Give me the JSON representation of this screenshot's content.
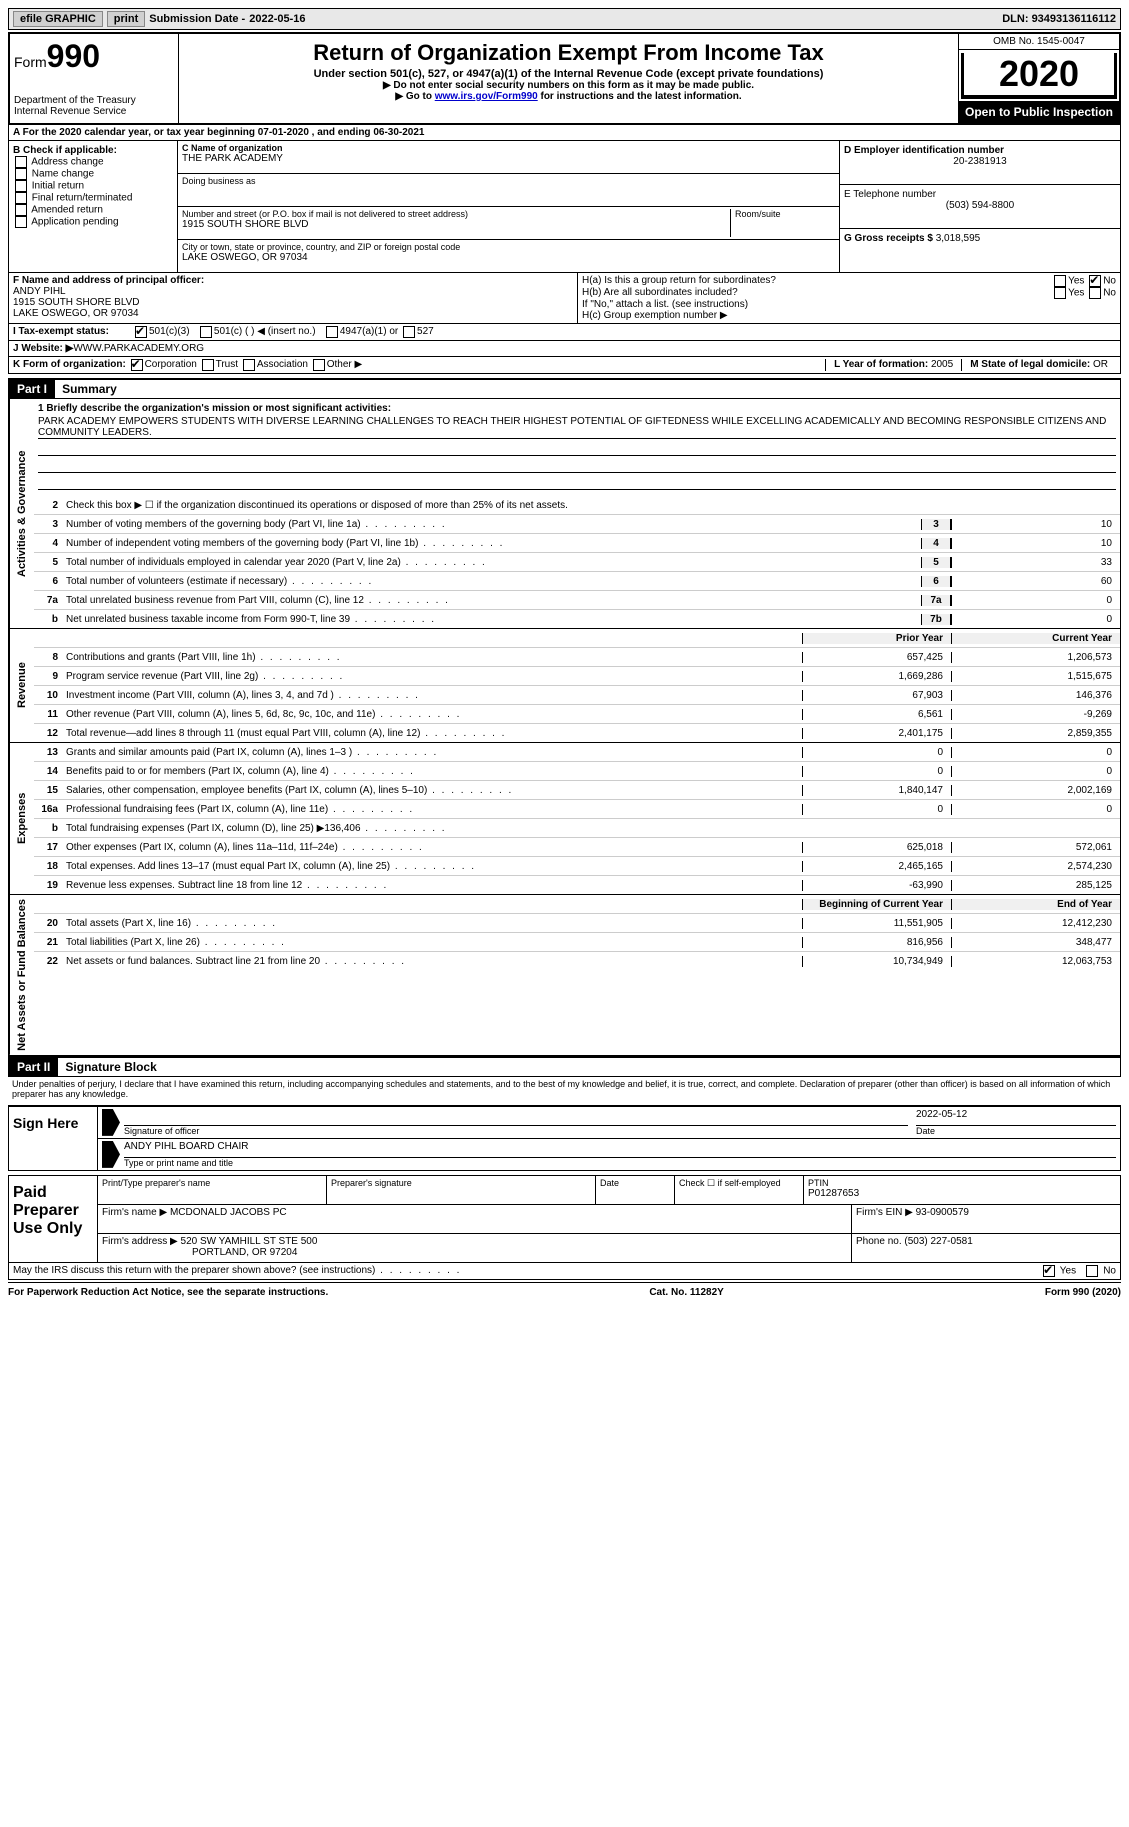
{
  "top": {
    "efile": "efile GRAPHIC",
    "print": "print",
    "sub_label": "Submission Date - ",
    "sub_date": "2022-05-16",
    "dln_label": "DLN: ",
    "dln": "93493136116112"
  },
  "header": {
    "form_word": "Form",
    "form_num": "990",
    "dept": "Department of the Treasury\nInternal Revenue Service",
    "title": "Return of Organization Exempt From Income Tax",
    "subtitle": "Under section 501(c), 527, or 4947(a)(1) of the Internal Revenue Code (except private foundations)",
    "note1": "▶ Do not enter social security numbers on this form as it may be made public.",
    "note2_pre": "▶ Go to ",
    "note2_link": "www.irs.gov/Form990",
    "note2_post": " for instructions and the latest information.",
    "omb": "OMB No. 1545-0047",
    "year": "2020",
    "open": "Open to Public Inspection"
  },
  "section_a": "A For the 2020 calendar year, or tax year beginning 07-01-2020   , and ending 06-30-2021",
  "b": {
    "label": "B Check if applicable:",
    "items": [
      "Address change",
      "Name change",
      "Initial return",
      "Final return/terminated",
      "Amended return",
      "Application pending"
    ],
    "checked": [
      false,
      false,
      false,
      false,
      false,
      false
    ]
  },
  "c": {
    "name_label": "C Name of organization",
    "name": "THE PARK ACADEMY",
    "dba_label": "Doing business as",
    "dba": "",
    "addr_label": "Number and street (or P.O. box if mail is not delivered to street address)",
    "room_label": "Room/suite",
    "addr": "1915 SOUTH SHORE BLVD",
    "city_label": "City or town, state or province, country, and ZIP or foreign postal code",
    "city": "LAKE OSWEGO, OR   97034"
  },
  "d": {
    "label": "D Employer identification number",
    "val": "20-2381913"
  },
  "e": {
    "label": "E Telephone number",
    "val": "(503) 594-8800"
  },
  "g": {
    "label": "G Gross receipts $ ",
    "val": "3,018,595"
  },
  "f": {
    "label": "F  Name and address of principal officer:",
    "name": "ANDY PIHL",
    "addr1": "1915 SOUTH SHORE BLVD",
    "addr2": "LAKE OSWEGO, OR   97034"
  },
  "h": {
    "a": "H(a)  Is this a group return for subordinates?",
    "b": "H(b)  Are all subordinates included?",
    "b_note": "If \"No,\" attach a list. (see instructions)",
    "c": "H(c)  Group exemption number ▶",
    "yes": "Yes",
    "no": "No"
  },
  "i": {
    "label": "I   Tax-exempt status:",
    "opts": [
      "501(c)(3)",
      "501(c) (   ) ◀ (insert no.)",
      "4947(a)(1) or",
      "527"
    ]
  },
  "j": {
    "label": "J   Website: ▶",
    "val": " WWW.PARKACADEMY.ORG"
  },
  "k": {
    "label": "K Form of organization:",
    "opts": [
      "Corporation",
      "Trust",
      "Association",
      "Other ▶"
    ]
  },
  "l": {
    "label": "L Year of formation: ",
    "val": "2005"
  },
  "m": {
    "label": "M State of legal domicile: ",
    "val": "OR"
  },
  "part1": {
    "header": "Part I",
    "title": "Summary",
    "q1_label": "1   Briefly describe the organization's mission or most significant activities:",
    "mission": "PARK ACADEMY EMPOWERS STUDENTS WITH DIVERSE LEARNING CHALLENGES TO REACH THEIR HIGHEST POTENTIAL OF GIFTEDNESS WHILE EXCELLING ACADEMICALLY AND BECOMING RESPONSIBLE CITIZENS AND COMMUNITY LEADERS.",
    "q2": "Check this box ▶ ☐  if the organization discontinued its operations or disposed of more than 25% of its net assets.",
    "gov_side": "Activities & Governance",
    "rev_side": "Revenue",
    "exp_side": "Expenses",
    "net_side": "Net Assets or Fund Balances",
    "lines_gov": [
      {
        "n": "3",
        "d": "Number of voting members of the governing body (Part VI, line 1a)",
        "box": "3",
        "v": "10"
      },
      {
        "n": "4",
        "d": "Number of independent voting members of the governing body (Part VI, line 1b)",
        "box": "4",
        "v": "10"
      },
      {
        "n": "5",
        "d": "Total number of individuals employed in calendar year 2020 (Part V, line 2a)",
        "box": "5",
        "v": "33"
      },
      {
        "n": "6",
        "d": "Total number of volunteers (estimate if necessary)",
        "box": "6",
        "v": "60"
      },
      {
        "n": "7a",
        "d": "Total unrelated business revenue from Part VIII, column (C), line 12",
        "box": "7a",
        "v": "0"
      },
      {
        "n": "b",
        "d": "Net unrelated business taxable income from Form 990-T, line 39",
        "box": "7b",
        "v": "0"
      }
    ],
    "col_prior": "Prior Year",
    "col_current": "Current Year",
    "lines_rev": [
      {
        "n": "8",
        "d": "Contributions and grants (Part VIII, line 1h)",
        "p": "657,425",
        "c": "1,206,573"
      },
      {
        "n": "9",
        "d": "Program service revenue (Part VIII, line 2g)",
        "p": "1,669,286",
        "c": "1,515,675"
      },
      {
        "n": "10",
        "d": "Investment income (Part VIII, column (A), lines 3, 4, and 7d )",
        "p": "67,903",
        "c": "146,376"
      },
      {
        "n": "11",
        "d": "Other revenue (Part VIII, column (A), lines 5, 6d, 8c, 9c, 10c, and 11e)",
        "p": "6,561",
        "c": "-9,269"
      },
      {
        "n": "12",
        "d": "Total revenue—add lines 8 through 11 (must equal Part VIII, column (A), line 12)",
        "p": "2,401,175",
        "c": "2,859,355"
      }
    ],
    "lines_exp": [
      {
        "n": "13",
        "d": "Grants and similar amounts paid (Part IX, column (A), lines 1–3 )",
        "p": "0",
        "c": "0"
      },
      {
        "n": "14",
        "d": "Benefits paid to or for members (Part IX, column (A), line 4)",
        "p": "0",
        "c": "0"
      },
      {
        "n": "15",
        "d": "Salaries, other compensation, employee benefits (Part IX, column (A), lines 5–10)",
        "p": "1,840,147",
        "c": "2,002,169"
      },
      {
        "n": "16a",
        "d": "Professional fundraising fees (Part IX, column (A), line 11e)",
        "p": "0",
        "c": "0"
      },
      {
        "n": "b",
        "d": "Total fundraising expenses (Part IX, column (D), line 25) ▶136,406",
        "p": "",
        "c": "",
        "shaded": true
      },
      {
        "n": "17",
        "d": "Other expenses (Part IX, column (A), lines 11a–11d, 11f–24e)",
        "p": "625,018",
        "c": "572,061"
      },
      {
        "n": "18",
        "d": "Total expenses. Add lines 13–17 (must equal Part IX, column (A), line 25)",
        "p": "2,465,165",
        "c": "2,574,230"
      },
      {
        "n": "19",
        "d": "Revenue less expenses. Subtract line 18 from line 12",
        "p": "-63,990",
        "c": "285,125"
      }
    ],
    "col_begin": "Beginning of Current Year",
    "col_end": "End of Year",
    "lines_net": [
      {
        "n": "20",
        "d": "Total assets (Part X, line 16)",
        "p": "11,551,905",
        "c": "12,412,230"
      },
      {
        "n": "21",
        "d": "Total liabilities (Part X, line 26)",
        "p": "816,956",
        "c": "348,477"
      },
      {
        "n": "22",
        "d": "Net assets or fund balances. Subtract line 21 from line 20",
        "p": "10,734,949",
        "c": "12,063,753"
      }
    ]
  },
  "part2": {
    "header": "Part II",
    "title": "Signature Block",
    "decl": "Under penalties of perjury, I declare that I have examined this return, including accompanying schedules and statements, and to the best of my knowledge and belief, it is true, correct, and complete. Declaration of preparer (other than officer) is based on all information of which preparer has any knowledge.",
    "sign_here": "Sign Here",
    "sig_officer": "Signature of officer",
    "sig_date_label": "Date",
    "sig_date": "2022-05-12",
    "sig_name": "ANDY PIHL  BOARD CHAIR",
    "sig_name_label": "Type or print name and title",
    "paid_label": "Paid Preparer Use Only",
    "prep_name_label": "Print/Type preparer's name",
    "prep_sig_label": "Preparer's signature",
    "prep_date_label": "Date",
    "prep_check": "Check ☐  if self-employed",
    "ptin_label": "PTIN",
    "ptin": "P01287653",
    "firm_name_label": "Firm's name    ▶",
    "firm_name": "MCDONALD JACOBS PC",
    "firm_ein_label": "Firm's EIN ▶",
    "firm_ein": "93-0900579",
    "firm_addr_label": "Firm's address ▶",
    "firm_addr1": "520 SW YAMHILL ST STE 500",
    "firm_addr2": "PORTLAND, OR   97204",
    "phone_label": "Phone no. ",
    "phone": "(503) 227-0581",
    "discuss": "May the IRS discuss this return with the preparer shown above? (see instructions)",
    "yes": "Yes",
    "no": "No"
  },
  "footer": {
    "left": "For Paperwork Reduction Act Notice, see the separate instructions.",
    "mid": "Cat. No. 11282Y",
    "right": "Form 990 (2020)"
  }
}
